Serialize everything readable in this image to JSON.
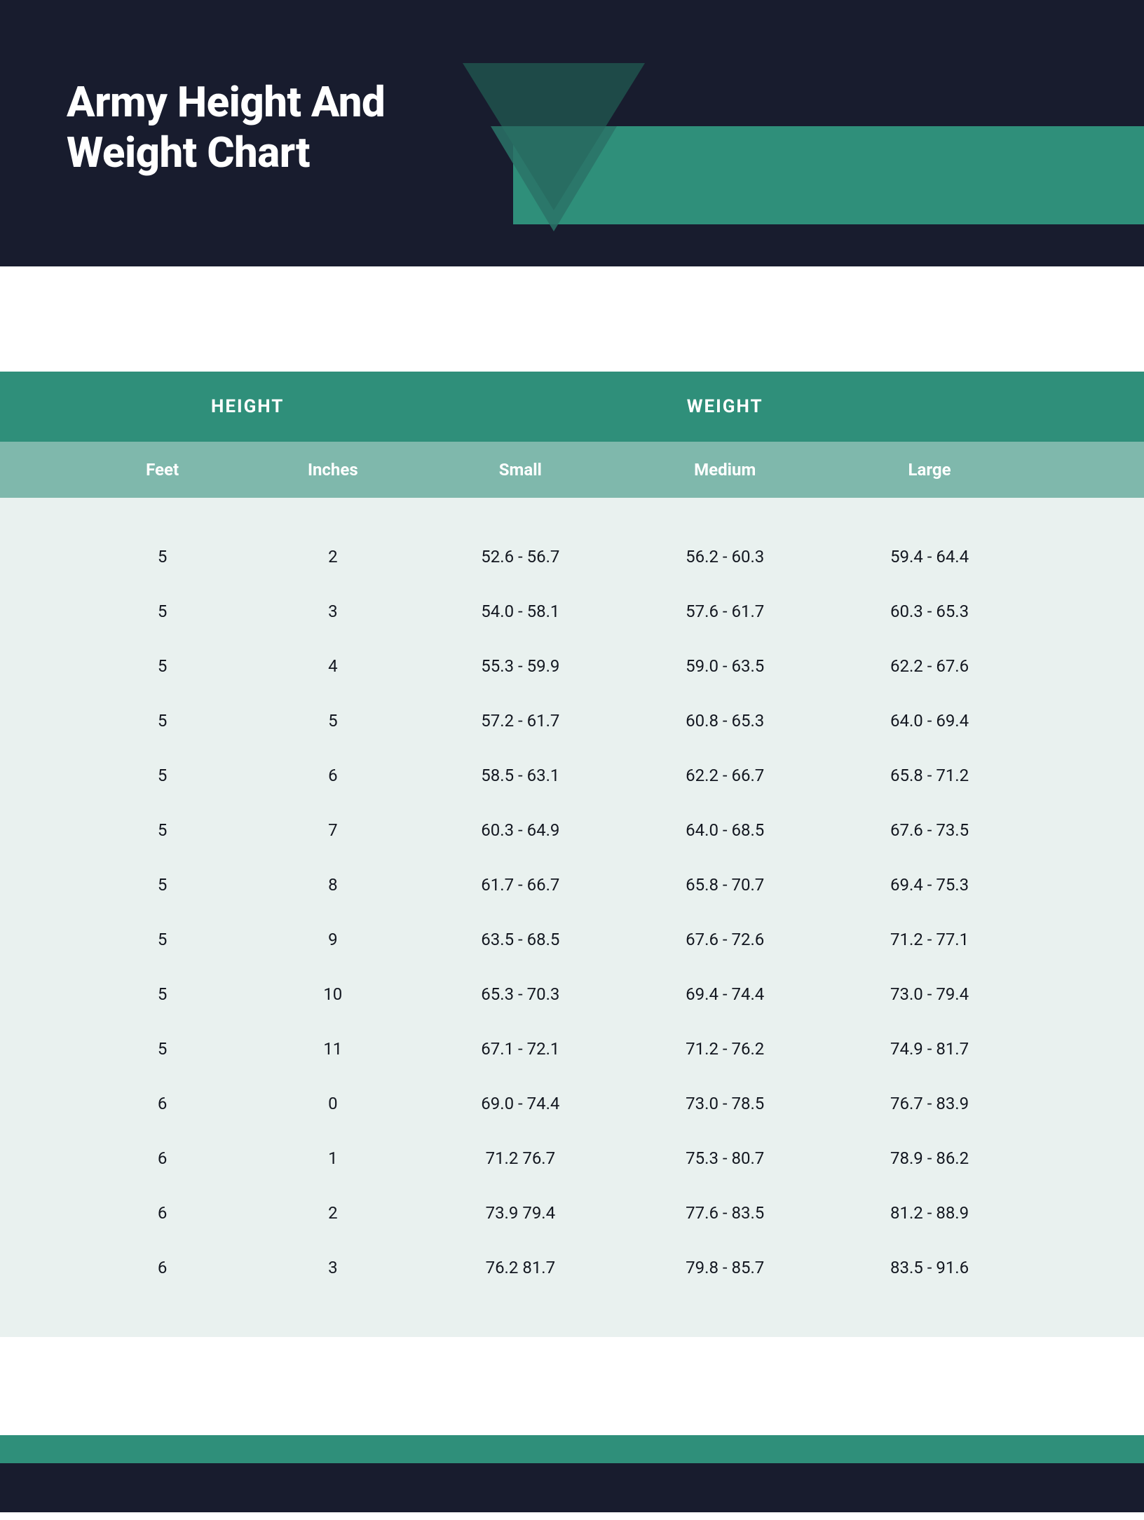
{
  "header": {
    "title_line1": "Army Height And",
    "title_line2": "Weight Chart",
    "bg_color": "#181c2e",
    "stripe_color": "#2f8f7a",
    "triangle_dark": "#1e4a48",
    "triangle_light": "#2a7367",
    "title_color": "#ffffff"
  },
  "table": {
    "type": "table",
    "group_header_bg": "#2f8f7a",
    "sub_header_bg": "#7fb8ac",
    "body_bg": "#e9f1ef",
    "text_color": "#141821",
    "header_text_color": "#ffffff",
    "group_header_fontsize": 26,
    "sub_header_fontsize": 24,
    "cell_fontsize": 24,
    "groups": {
      "height": "HEIGHT",
      "weight": "WEIGHT"
    },
    "columns": [
      "Feet",
      "Inches",
      "Small",
      "Medium",
      "Large"
    ],
    "rows": [
      [
        "5",
        "2",
        "52.6 - 56.7",
        "56.2 - 60.3",
        "59.4 - 64.4"
      ],
      [
        "5",
        "3",
        "54.0 - 58.1",
        "57.6 - 61.7",
        "60.3 - 65.3"
      ],
      [
        "5",
        "4",
        "55.3 - 59.9",
        "59.0 - 63.5",
        "62.2 - 67.6"
      ],
      [
        "5",
        "5",
        "57.2 - 61.7",
        "60.8 - 65.3",
        "64.0 - 69.4"
      ],
      [
        "5",
        "6",
        "58.5 - 63.1",
        "62.2 - 66.7",
        "65.8 - 71.2"
      ],
      [
        "5",
        "7",
        "60.3 - 64.9",
        "64.0 - 68.5",
        "67.6 - 73.5"
      ],
      [
        "5",
        "8",
        "61.7 - 66.7",
        "65.8 - 70.7",
        "69.4 - 75.3"
      ],
      [
        "5",
        "9",
        "63.5 - 68.5",
        "67.6 - 72.6",
        "71.2 - 77.1"
      ],
      [
        "5",
        "10",
        "65.3 - 70.3",
        "69.4 - 74.4",
        "73.0 - 79.4"
      ],
      [
        "5",
        "11",
        "67.1 - 72.1",
        "71.2 - 76.2",
        "74.9 - 81.7"
      ],
      [
        "6",
        "0",
        "69.0 - 74.4",
        "73.0 - 78.5",
        "76.7 - 83.9"
      ],
      [
        "6",
        "1",
        "71.2 76.7",
        "75.3 - 80.7",
        "78.9 - 86.2"
      ],
      [
        "6",
        "2",
        "73.9 79.4",
        "77.6 - 83.5",
        "81.2 - 88.9"
      ],
      [
        "6",
        "3",
        "76.2 81.7",
        "79.8 - 85.7",
        "83.5 - 91.6"
      ]
    ]
  },
  "footer": {
    "stripe_color": "#2f8f7a",
    "dark_color": "#181c2e"
  }
}
